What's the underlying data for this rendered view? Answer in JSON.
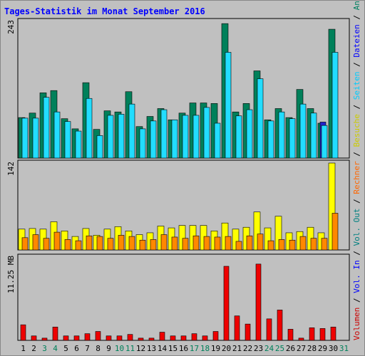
{
  "chart_data": {
    "type": "bar",
    "title": "Tages-Statistik im Monat September 2016",
    "categories": [
      "1",
      "2",
      "3",
      "4",
      "5",
      "6",
      "7",
      "8",
      "9",
      "10",
      "11",
      "12",
      "13",
      "14",
      "15",
      "16",
      "17",
      "18",
      "19",
      "20",
      "21",
      "22",
      "23",
      "24",
      "25",
      "26",
      "27",
      "28",
      "29",
      "30",
      "31"
    ],
    "weekend_days": [
      "3",
      "4",
      "10",
      "11",
      "17",
      "18",
      "24",
      "25",
      "31"
    ],
    "panels": [
      {
        "name": "top",
        "max_label": "243",
        "ylim": [
          0,
          243
        ],
        "series": [
          {
            "name": "Anfragen",
            "values": [
              72,
              80,
              116,
              120,
              70,
              52,
              134,
              51,
              84,
              82,
              118,
              56,
              74,
              88,
              68,
              80,
              98,
              98,
              97,
              239,
              82,
              97,
              155,
              68,
              88,
              72,
              122,
              88,
              62,
              229
            ]
          },
          {
            "name": "Dateien",
            "values": [
              null,
              null,
              null,
              null,
              null,
              null,
              null,
              null,
              null,
              null,
              null,
              null,
              null,
              null,
              null,
              null,
              null,
              null,
              null,
              null,
              null,
              null,
              null,
              null,
              null,
              null,
              null,
              null,
              64,
              null
            ]
          },
          {
            "name": "Seiten",
            "values": [
              71,
              71,
              108,
              82,
              65,
              48,
              106,
              40,
              76,
              78,
              96,
              52,
              66,
              86,
              68,
              76,
              76,
              90,
              62,
              188,
              75,
              86,
              141,
              66,
              82,
              70,
              96,
              80,
              58,
              188
            ]
          }
        ]
      },
      {
        "name": "middle",
        "max_label": "142",
        "ylim": [
          0,
          142
        ],
        "series": [
          {
            "name": "Besuche",
            "values": [
              34,
              35,
              34,
              46,
              31,
              22,
              35,
              24,
              34,
              38,
              31,
              25,
              28,
              39,
              36,
              40,
              40,
              40,
              31,
              44,
              34,
              37,
              62,
              36,
              55,
              28,
              30,
              37,
              28,
              142
            ]
          },
          {
            "name": "Rechner",
            "values": [
              20,
              25,
              19,
              29,
              17,
              15,
              23,
              22,
              19,
              24,
              22,
              16,
              17,
              25,
              21,
              19,
              23,
              22,
              21,
              22,
              14,
              23,
              26,
              15,
              17,
              16,
              22,
              19,
              19,
              60
            ]
          }
        ]
      },
      {
        "name": "bottom",
        "max_label": "11.25 MB",
        "ylim": [
          0,
          11.25
        ],
        "series": [
          {
            "name": "Volumen",
            "values": [
              2.1,
              0.6,
              0.3,
              1.8,
              0.6,
              0.6,
              0.9,
              1.2,
              0.6,
              0.6,
              0.8,
              0.3,
              0.3,
              1.1,
              0.6,
              0.6,
              0.9,
              0.6,
              1.2,
              10.0,
              3.3,
              2.2,
              10.3,
              2.9,
              4.1,
              1.5,
              0.3,
              1.7,
              1.6,
              1.8
            ]
          }
        ]
      }
    ],
    "right_legend": [
      {
        "text": "Volumen",
        "color": "#cc0000"
      },
      {
        "text": " / ",
        "color": "#000000"
      },
      {
        "text": "Vol. In",
        "color": "#0000ff"
      },
      {
        "text": " / ",
        "color": "#000000"
      },
      {
        "text": "Vol. Out",
        "color": "#008080"
      },
      {
        "text": " / ",
        "color": "#000000"
      },
      {
        "text": "Rechner",
        "color": "#ff6600"
      },
      {
        "text": " / ",
        "color": "#000000"
      },
      {
        "text": "Besuche",
        "color": "#cccc00"
      },
      {
        "text": " / ",
        "color": "#000000"
      },
      {
        "text": "Seiten",
        "color": "#00ccff"
      },
      {
        "text": " / ",
        "color": "#000000"
      },
      {
        "text": "Dateien",
        "color": "#0000ff"
      },
      {
        "text": " / ",
        "color": "#000000"
      },
      {
        "text": "Anfragen",
        "color": "#008060"
      }
    ],
    "colors": {
      "title": "#0000ff",
      "background": "#c0c0c0",
      "anfragen": "#00805a",
      "dateien": "#2222cc",
      "seiten": "#22ddff",
      "besuche": "#ffff00",
      "rechner": "#ff8800",
      "volumen": "#ee0000",
      "weekday_label": "#000000",
      "weekend_label": "#00805a"
    }
  }
}
